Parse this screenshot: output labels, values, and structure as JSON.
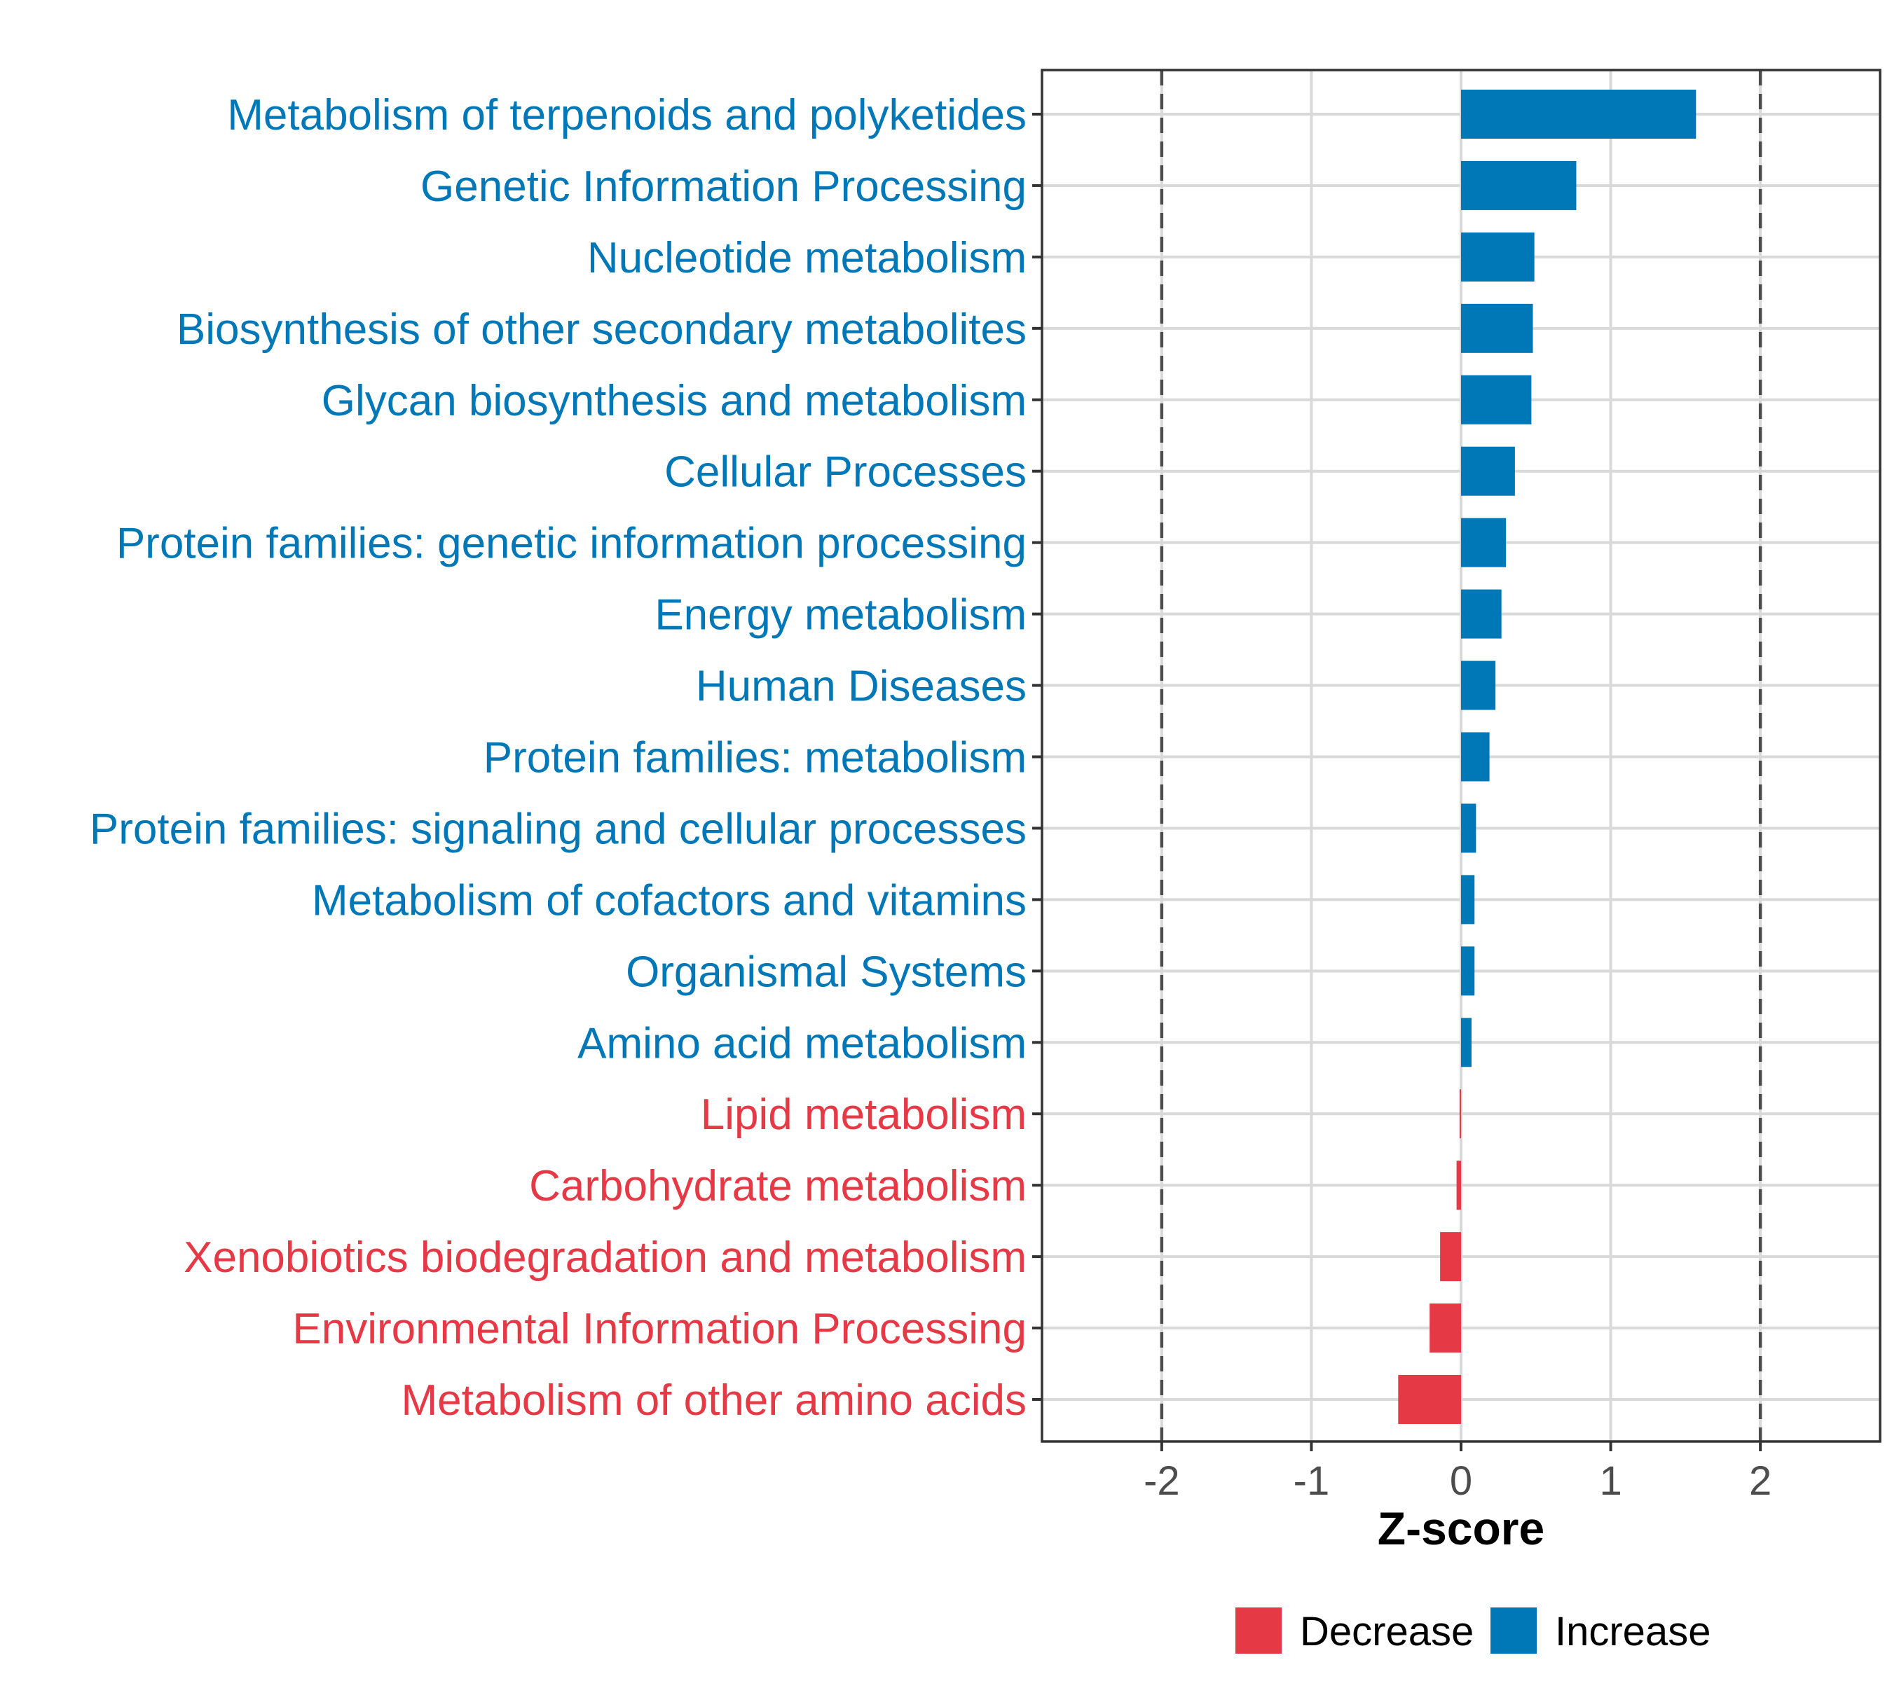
{
  "chart_data": {
    "type": "bar",
    "orientation": "horizontal",
    "xlabel": "Z-score",
    "ylabel": "",
    "xlim": [
      -2.8,
      2.8
    ],
    "x_ticks": [
      -2,
      -1,
      0,
      1,
      2
    ],
    "x_tick_labels": [
      "-2",
      "-1",
      "0",
      "1",
      "2"
    ],
    "reference_lines": [
      -2,
      2
    ],
    "grid": true,
    "legend_position": "bottom",
    "colors": {
      "Decrease": "#e63946",
      "Increase": "#0077b6"
    },
    "legend": [
      {
        "label": "Decrease",
        "color": "#e63946"
      },
      {
        "label": "Increase",
        "color": "#0077b6"
      }
    ],
    "categories": [
      "Metabolism of terpenoids and polyketides",
      "Genetic Information Processing",
      "Nucleotide metabolism",
      "Biosynthesis of other secondary metabolites",
      "Glycan biosynthesis and metabolism",
      "Cellular Processes",
      "Protein families: genetic information processing",
      "Energy metabolism",
      "Human Diseases",
      "Protein families: metabolism",
      "Protein families: signaling and cellular processes",
      "Metabolism of cofactors and vitamins",
      "Organismal Systems",
      "Amino acid metabolism",
      "Lipid metabolism",
      "Carbohydrate metabolism",
      "Xenobiotics biodegradation and metabolism",
      "Environmental Information Processing",
      "Metabolism of other amino acids"
    ],
    "values": [
      1.57,
      0.77,
      0.49,
      0.48,
      0.47,
      0.36,
      0.3,
      0.27,
      0.23,
      0.19,
      0.1,
      0.09,
      0.09,
      0.07,
      -0.01,
      -0.03,
      -0.14,
      -0.21,
      -0.42
    ],
    "groups": [
      "Increase",
      "Increase",
      "Increase",
      "Increase",
      "Increase",
      "Increase",
      "Increase",
      "Increase",
      "Increase",
      "Increase",
      "Increase",
      "Increase",
      "Increase",
      "Increase",
      "Decrease",
      "Decrease",
      "Decrease",
      "Decrease",
      "Decrease"
    ]
  }
}
